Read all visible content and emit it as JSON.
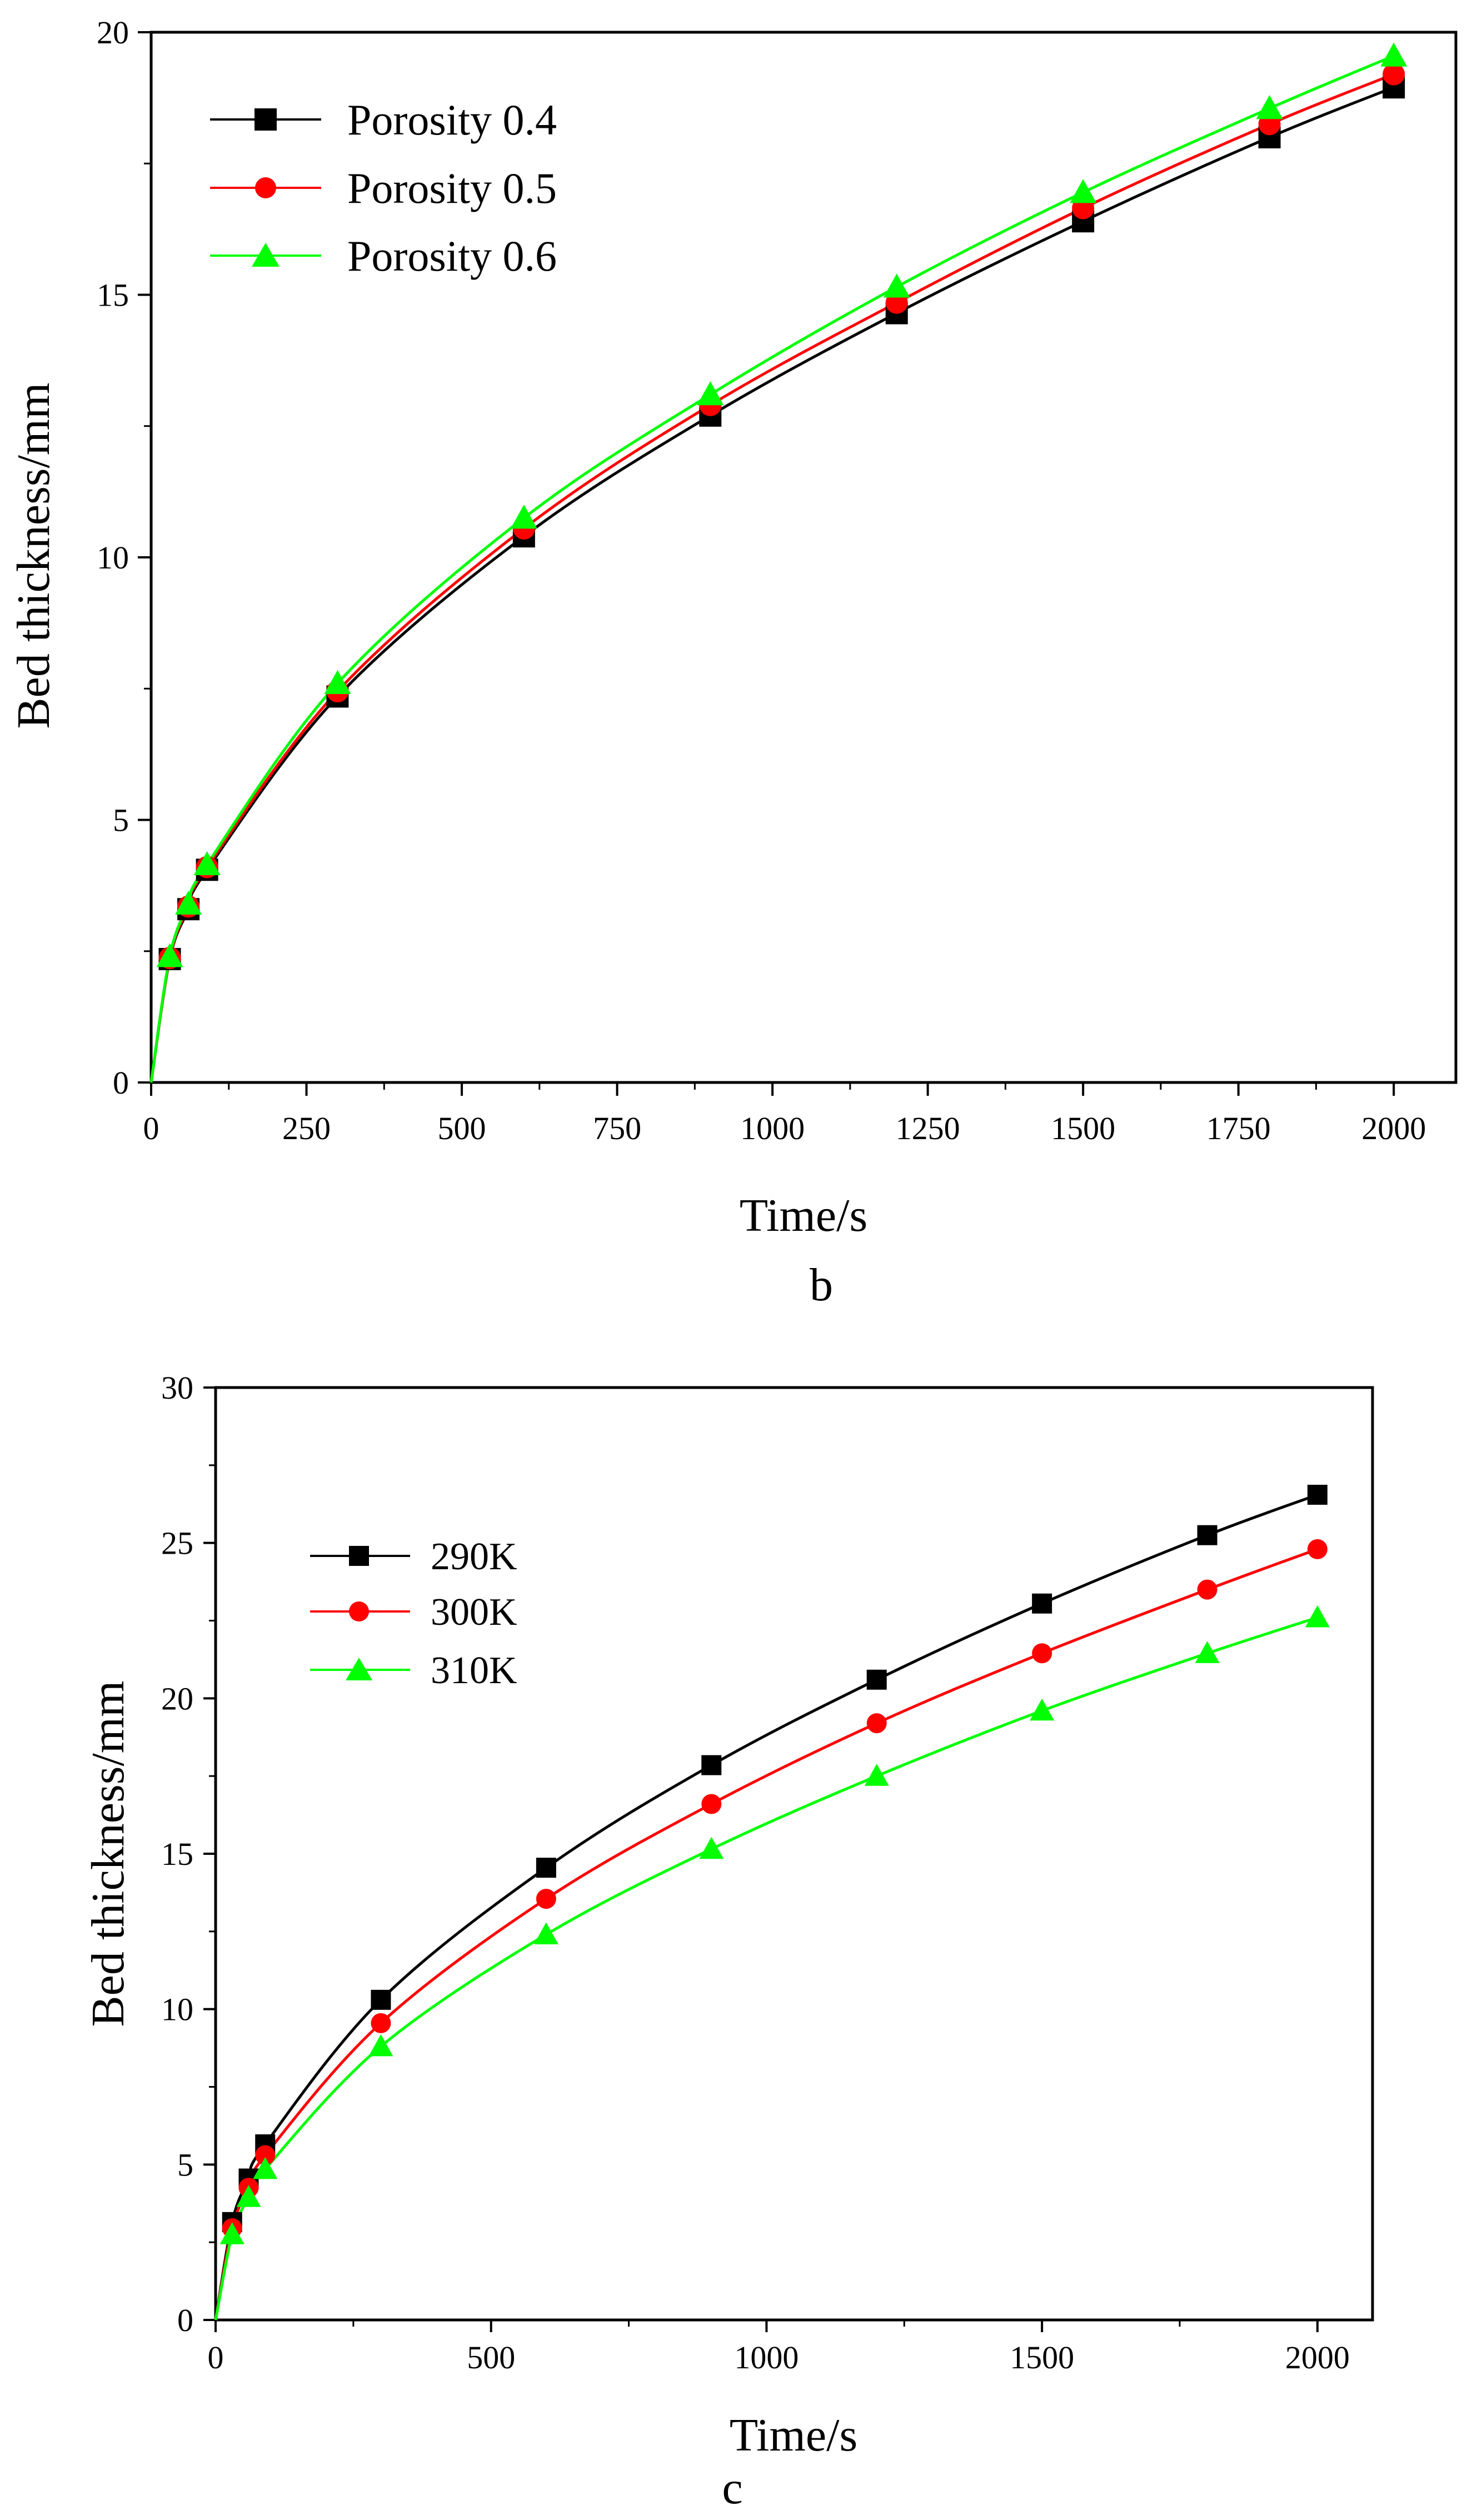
{
  "chart_data": [
    {
      "id": "b",
      "type": "line",
      "panel_label": "b",
      "xlabel": "Time/s",
      "ylabel": "Bed thickness/mm",
      "xlim": [
        0,
        2100
      ],
      "ylim": [
        0,
        20
      ],
      "xticks": [
        "0",
        "250",
        "500",
        "750",
        "1000",
        "1250",
        "1500",
        "1750",
        "2000"
      ],
      "yticks": [
        "0",
        "5",
        "10",
        "15",
        "20"
      ],
      "legend_position": "top-left",
      "series": [
        {
          "name": "Porosity 0.4",
          "color": "#000000",
          "marker": "square",
          "x": [
            0,
            30,
            60,
            90,
            300,
            600,
            900,
            1200,
            1500,
            1800,
            2000
          ],
          "y": [
            0,
            2.35,
            3.3,
            4.05,
            7.35,
            10.4,
            12.7,
            14.65,
            16.4,
            18.0,
            18.95
          ]
        },
        {
          "name": "Porosity 0.5",
          "color": "#ff0000",
          "marker": "circle",
          "x": [
            0,
            30,
            60,
            90,
            300,
            600,
            900,
            1200,
            1500,
            1800,
            2000
          ],
          "y": [
            0,
            2.37,
            3.35,
            4.1,
            7.45,
            10.55,
            12.9,
            14.85,
            16.65,
            18.25,
            19.2
          ]
        },
        {
          "name": "Porosity 0.6",
          "color": "#00ff00",
          "marker": "triangle",
          "x": [
            0,
            30,
            60,
            90,
            300,
            600,
            900,
            1200,
            1500,
            1800,
            2000
          ],
          "y": [
            0,
            2.4,
            3.4,
            4.15,
            7.6,
            10.75,
            13.1,
            15.15,
            16.95,
            18.55,
            19.55
          ]
        }
      ]
    },
    {
      "id": "c",
      "type": "line",
      "panel_label": "c",
      "xlabel": "Time/s",
      "ylabel": "Bed thickness/mm",
      "xlim": [
        0,
        2100
      ],
      "ylim": [
        0,
        30
      ],
      "xticks": [
        "0",
        "500",
        "1000",
        "1500",
        "2000"
      ],
      "yticks": [
        "0",
        "5",
        "10",
        "15",
        "20",
        "25",
        "30"
      ],
      "legend_position": "upper-left",
      "series": [
        {
          "name": "290K",
          "color": "#000000",
          "marker": "square",
          "x": [
            0,
            30,
            60,
            90,
            300,
            600,
            900,
            1200,
            1500,
            1800,
            2000
          ],
          "y": [
            0,
            3.15,
            4.55,
            5.65,
            10.3,
            14.55,
            17.85,
            20.6,
            23.05,
            25.25,
            26.55
          ]
        },
        {
          "name": "300K",
          "color": "#ff0000",
          "marker": "circle",
          "x": [
            0,
            30,
            60,
            90,
            300,
            600,
            900,
            1200,
            1500,
            1800,
            2000
          ],
          "y": [
            0,
            2.95,
            4.25,
            5.3,
            9.55,
            13.55,
            16.6,
            19.2,
            21.45,
            23.5,
            24.8
          ]
        },
        {
          "name": "310K",
          "color": "#00ff00",
          "marker": "triangle",
          "x": [
            0,
            30,
            60,
            90,
            300,
            600,
            900,
            1200,
            1500,
            1800,
            2000
          ],
          "y": [
            0,
            2.75,
            3.95,
            4.85,
            8.8,
            12.4,
            15.15,
            17.5,
            19.6,
            21.45,
            22.6
          ]
        }
      ]
    }
  ]
}
